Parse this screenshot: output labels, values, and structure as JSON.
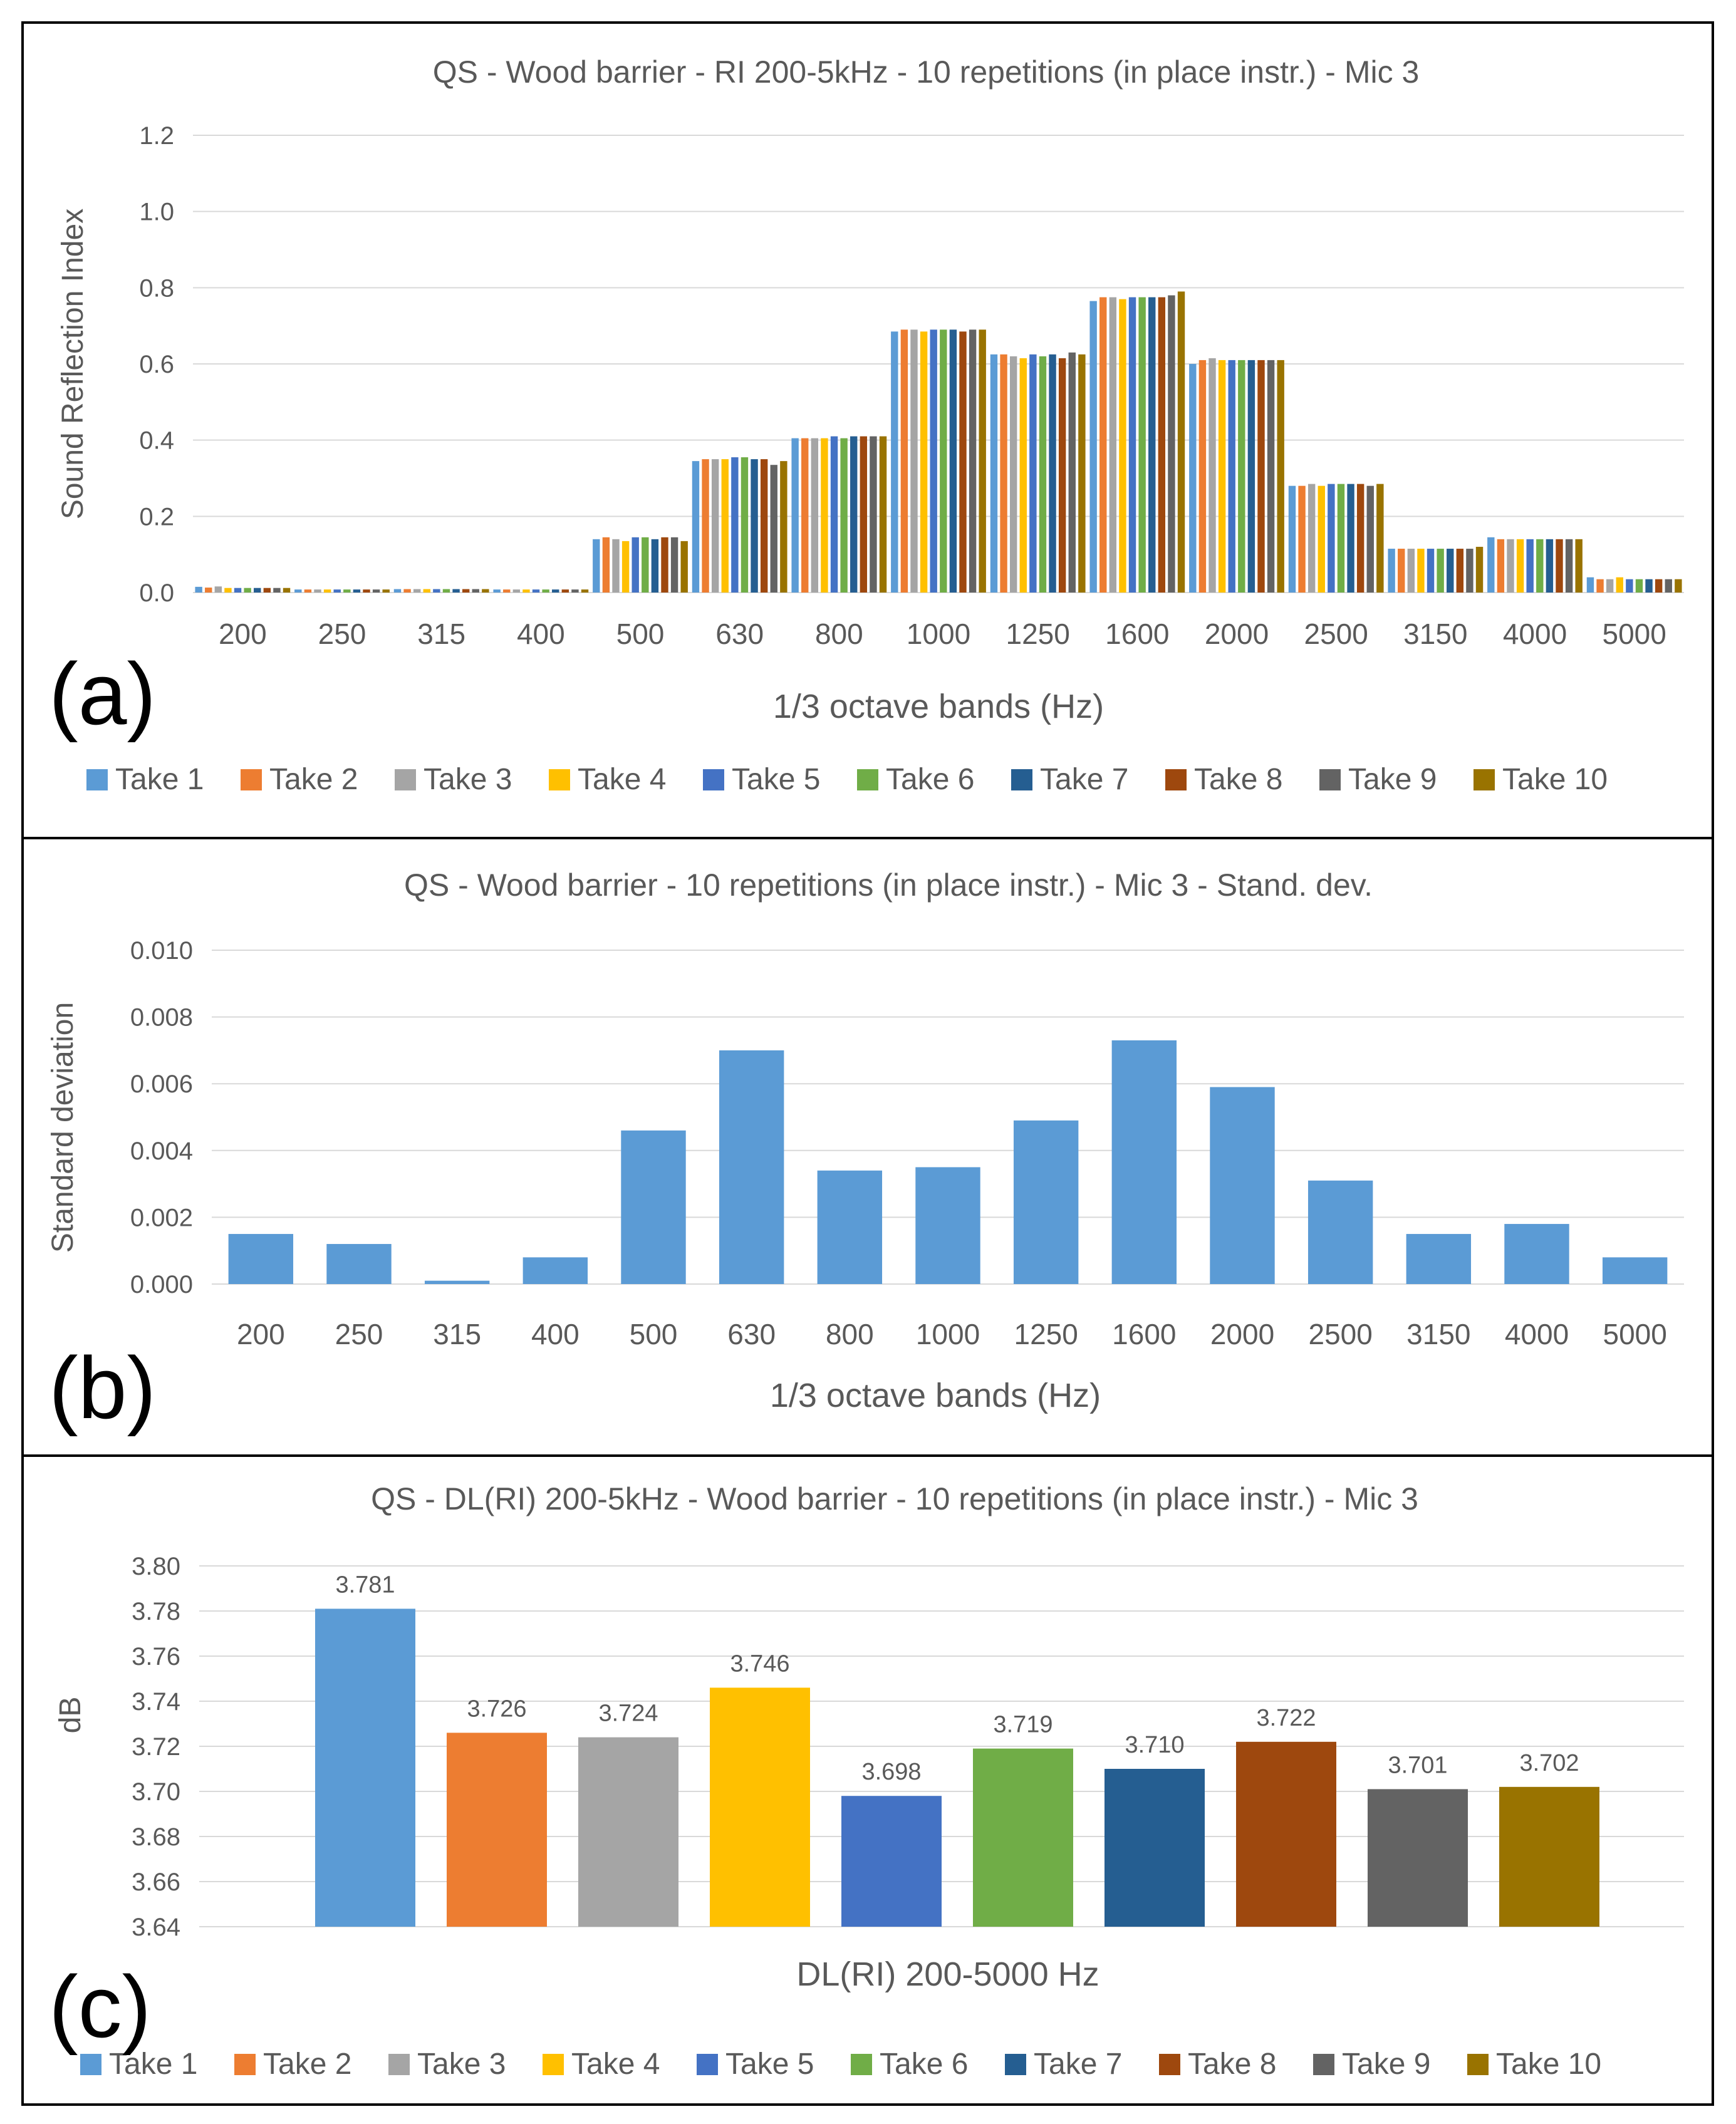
{
  "colors": {
    "takes": [
      "#5b9bd5",
      "#ed7d31",
      "#a5a5a5",
      "#ffc000",
      "#4472c4",
      "#70ad47",
      "#255e91",
      "#9e480e",
      "#636363",
      "#997300"
    ],
    "grid": "#d9d9d9",
    "text": "#595959"
  },
  "panels": [
    {
      "letter": "(a)"
    },
    {
      "letter": "(b)"
    },
    {
      "letter": "(c)"
    }
  ],
  "chart_data": [
    {
      "type": "bar",
      "title": "QS - Wood barrier - RI 200-5kHz - 10 repetitions (in place instr.) - Mic 3",
      "xlabel": "1/3 octave bands (Hz)",
      "ylabel": "Sound Reflection Index",
      "ylim": [
        0,
        1.2
      ],
      "ytick_labels": [
        "0.0",
        "0.2",
        "0.4",
        "0.6",
        "0.8",
        "1.0",
        "1.2"
      ],
      "legend_position": "bottom",
      "categories": [
        "200",
        "250",
        "315",
        "400",
        "500",
        "630",
        "800",
        "1000",
        "1250",
        "1600",
        "2000",
        "2500",
        "3150",
        "4000",
        "5000"
      ],
      "series": [
        {
          "name": "Take 1",
          "values": [
            0.015,
            0.008,
            0.009,
            0.008,
            0.14,
            0.345,
            0.405,
            0.685,
            0.625,
            0.765,
            0.6,
            0.28,
            0.115,
            0.145,
            0.04
          ]
        },
        {
          "name": "Take 2",
          "values": [
            0.013,
            0.008,
            0.009,
            0.008,
            0.145,
            0.35,
            0.405,
            0.69,
            0.625,
            0.775,
            0.61,
            0.28,
            0.115,
            0.14,
            0.035
          ]
        },
        {
          "name": "Take 3",
          "values": [
            0.016,
            0.008,
            0.009,
            0.008,
            0.14,
            0.35,
            0.405,
            0.69,
            0.62,
            0.775,
            0.615,
            0.285,
            0.115,
            0.14,
            0.035
          ]
        },
        {
          "name": "Take 4",
          "values": [
            0.012,
            0.008,
            0.009,
            0.008,
            0.135,
            0.35,
            0.405,
            0.685,
            0.615,
            0.77,
            0.61,
            0.28,
            0.115,
            0.14,
            0.04
          ]
        },
        {
          "name": "Take 5",
          "values": [
            0.012,
            0.008,
            0.009,
            0.008,
            0.145,
            0.355,
            0.41,
            0.69,
            0.625,
            0.775,
            0.61,
            0.285,
            0.115,
            0.14,
            0.035
          ]
        },
        {
          "name": "Take 6",
          "values": [
            0.012,
            0.008,
            0.009,
            0.008,
            0.145,
            0.355,
            0.405,
            0.69,
            0.62,
            0.775,
            0.61,
            0.285,
            0.115,
            0.14,
            0.035
          ]
        },
        {
          "name": "Take 7",
          "values": [
            0.012,
            0.008,
            0.009,
            0.008,
            0.14,
            0.35,
            0.41,
            0.69,
            0.625,
            0.775,
            0.61,
            0.285,
            0.115,
            0.14,
            0.035
          ]
        },
        {
          "name": "Take 8",
          "values": [
            0.012,
            0.008,
            0.009,
            0.008,
            0.145,
            0.35,
            0.41,
            0.685,
            0.615,
            0.775,
            0.61,
            0.285,
            0.115,
            0.14,
            0.035
          ]
        },
        {
          "name": "Take 9",
          "values": [
            0.012,
            0.008,
            0.009,
            0.008,
            0.145,
            0.335,
            0.41,
            0.69,
            0.63,
            0.78,
            0.61,
            0.28,
            0.115,
            0.14,
            0.035
          ]
        },
        {
          "name": "Take 10",
          "values": [
            0.012,
            0.008,
            0.009,
            0.008,
            0.135,
            0.345,
            0.41,
            0.69,
            0.625,
            0.79,
            0.61,
            0.285,
            0.12,
            0.14,
            0.035
          ]
        }
      ]
    },
    {
      "type": "bar",
      "title": "QS - Wood barrier - 10 repetitions (in place instr.) - Mic 3 - Stand. dev.",
      "xlabel": "1/3 octave bands (Hz)",
      "ylabel": "Standard deviation",
      "ylim": [
        0,
        0.01
      ],
      "ytick_labels": [
        "0.000",
        "0.002",
        "0.004",
        "0.006",
        "0.008",
        "0.010"
      ],
      "categories": [
        "200",
        "250",
        "315",
        "400",
        "500",
        "630",
        "800",
        "1000",
        "1250",
        "1600",
        "2000",
        "2500",
        "3150",
        "4000",
        "5000"
      ],
      "values": [
        0.0015,
        0.0012,
        0.0001,
        0.0008,
        0.0046,
        0.007,
        0.0034,
        0.0035,
        0.0049,
        0.0073,
        0.0059,
        0.0031,
        0.0015,
        0.0018,
        0.0008
      ]
    },
    {
      "type": "bar",
      "title": "QS - DL(RI) 200-5kHz - Wood barrier - 10 repetitions (in place instr.) - Mic 3",
      "xlabel": "DL(RI) 200-5000 Hz",
      "ylabel": "dB",
      "ylim": [
        3.64,
        3.8
      ],
      "ytick_labels": [
        "3.64",
        "3.66",
        "3.68",
        "3.70",
        "3.72",
        "3.74",
        "3.76",
        "3.78",
        "3.80"
      ],
      "legend_position": "bottom",
      "categories": [
        "Take 1",
        "Take 2",
        "Take 3",
        "Take 4",
        "Take 5",
        "Take 6",
        "Take 7",
        "Take 8",
        "Take 9",
        "Take 10"
      ],
      "values": [
        3.781,
        3.726,
        3.724,
        3.746,
        3.698,
        3.719,
        3.71,
        3.722,
        3.701,
        3.702
      ],
      "data_labels": [
        "3.781",
        "3.726",
        "3.724",
        "3.746",
        "3.698",
        "3.719",
        "3.710",
        "3.722",
        "3.701",
        "3.702"
      ]
    }
  ]
}
